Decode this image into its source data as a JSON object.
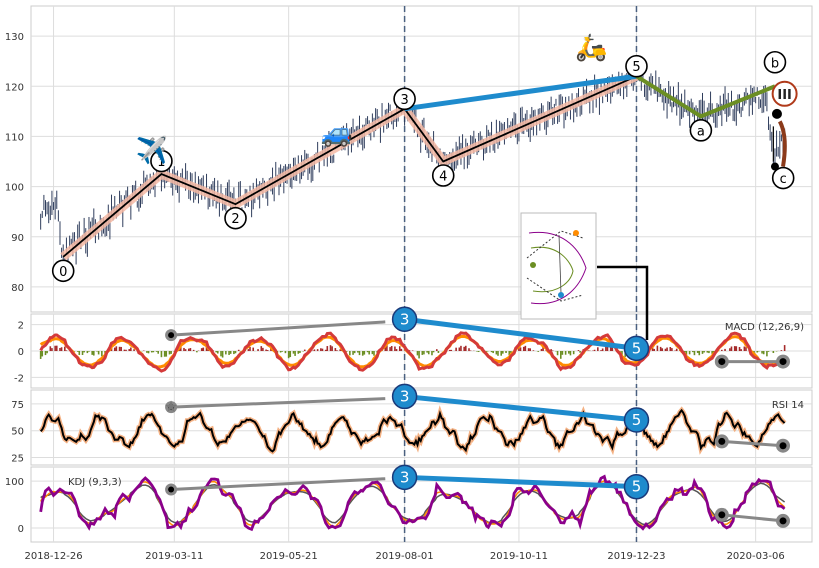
{
  "chart_data": {
    "type": "line",
    "panels": [
      {
        "name": "price",
        "ylim": [
          75,
          136
        ],
        "yticks": [
          80,
          90,
          100,
          110,
          120,
          130
        ],
        "elliott_waves": [
          {
            "label": "0",
            "date": "2019-01-01",
            "value": 86
          },
          {
            "label": "1",
            "date": "2019-03-03",
            "value": 102.5
          },
          {
            "label": "2",
            "date": "2019-04-18",
            "value": 96.5
          },
          {
            "label": "3",
            "date": "2019-08-01",
            "value": 115.5
          },
          {
            "label": "4",
            "date": "2019-08-25",
            "value": 105
          },
          {
            "label": "5",
            "date": "2019-12-23",
            "value": 122
          },
          {
            "label": "a",
            "date": "2020-02-01",
            "value": 114
          },
          {
            "label": "b",
            "date": "2020-03-18",
            "value": 120
          },
          {
            "label": "c",
            "date": "2020-03-20",
            "value": 104.5
          }
        ],
        "divergence_line": [
          {
            "date": "2019-08-01",
            "value": 115.5
          },
          {
            "date": "2019-12-23",
            "value": 122
          }
        ],
        "annotations": [
          "✈️",
          "🚙",
          "🛵"
        ],
        "marker_label": "III"
      },
      {
        "name": "macd",
        "label": "MACD (12,26,9)",
        "ylim": [
          -2.8,
          2.8
        ],
        "yticks": [
          -2,
          0,
          2
        ],
        "divergence": {
          "p3": {
            "date": "2019-08-01",
            "value": 2.4
          },
          "p5": {
            "date": "2019-12-23",
            "value": 0.2
          }
        },
        "grey_line": [
          {
            "date": "2019-03-09",
            "value": 1.2
          },
          {
            "date": "2019-07-20",
            "value": 2.2
          }
        ],
        "grey_tail": [
          {
            "date": "2020-02-14",
            "value": -0.8
          },
          {
            "date": "2020-03-23",
            "value": -0.8
          }
        ]
      },
      {
        "name": "rsi",
        "label": "RSI 14",
        "ylim": [
          18,
          88
        ],
        "yticks": [
          25,
          50,
          75
        ],
        "divergence": {
          "p3": {
            "date": "2019-08-01",
            "value": 82
          },
          "p5": {
            "date": "2019-12-23",
            "value": 60
          }
        },
        "grey_line": [
          {
            "date": "2019-03-09",
            "value": 72
          },
          {
            "date": "2019-07-20",
            "value": 80
          }
        ],
        "grey_tail": [
          {
            "date": "2020-02-14",
            "value": 40
          },
          {
            "date": "2020-03-23",
            "value": 36
          }
        ]
      },
      {
        "name": "kdj",
        "label": "KDJ (9,3,3)",
        "ylim": [
          -30,
          130
        ],
        "yticks": [
          0,
          100
        ],
        "divergence": {
          "p3": {
            "date": "2019-08-01",
            "value": 108
          },
          "p5": {
            "date": "2019-12-23",
            "value": 88
          }
        },
        "grey_line": [
          {
            "date": "2019-03-09",
            "value": 82
          },
          {
            "date": "2019-07-20",
            "value": 105
          }
        ],
        "grey_tail": [
          {
            "date": "2020-02-14",
            "value": 28
          },
          {
            "date": "2020-03-23",
            "value": 15
          }
        ]
      }
    ],
    "x_ticks": [
      "2018-12-26",
      "2019-03-11",
      "2019-05-21",
      "2019-08-01",
      "2019-10-11",
      "2019-12-23",
      "2020-03-06"
    ],
    "x_range": [
      "2018-12-12",
      "2020-04-10"
    ],
    "vlines": [
      "2019-08-01",
      "2019-12-23"
    ],
    "colors": {
      "candle": "#2f3d5c",
      "wave_halo": "#f5b9a3",
      "wave_line": "#000000",
      "divergence": "#1e8bcd",
      "abc": "#6b8e23",
      "macd_dif": "#d43a3a",
      "macd_dea": "#ff8c00",
      "bar_pos": "#a52a2a",
      "bar_neg": "#6b8e23",
      "rsi": "#000000",
      "rsi_halo": "#f4b183",
      "kdj_j": "#8b008b",
      "kdj_k": "#ff8c00",
      "kdj_d": "#555555",
      "grey": "#888888",
      "vline": "#4a6080",
      "marker_ring": "#b03a1a"
    }
  }
}
